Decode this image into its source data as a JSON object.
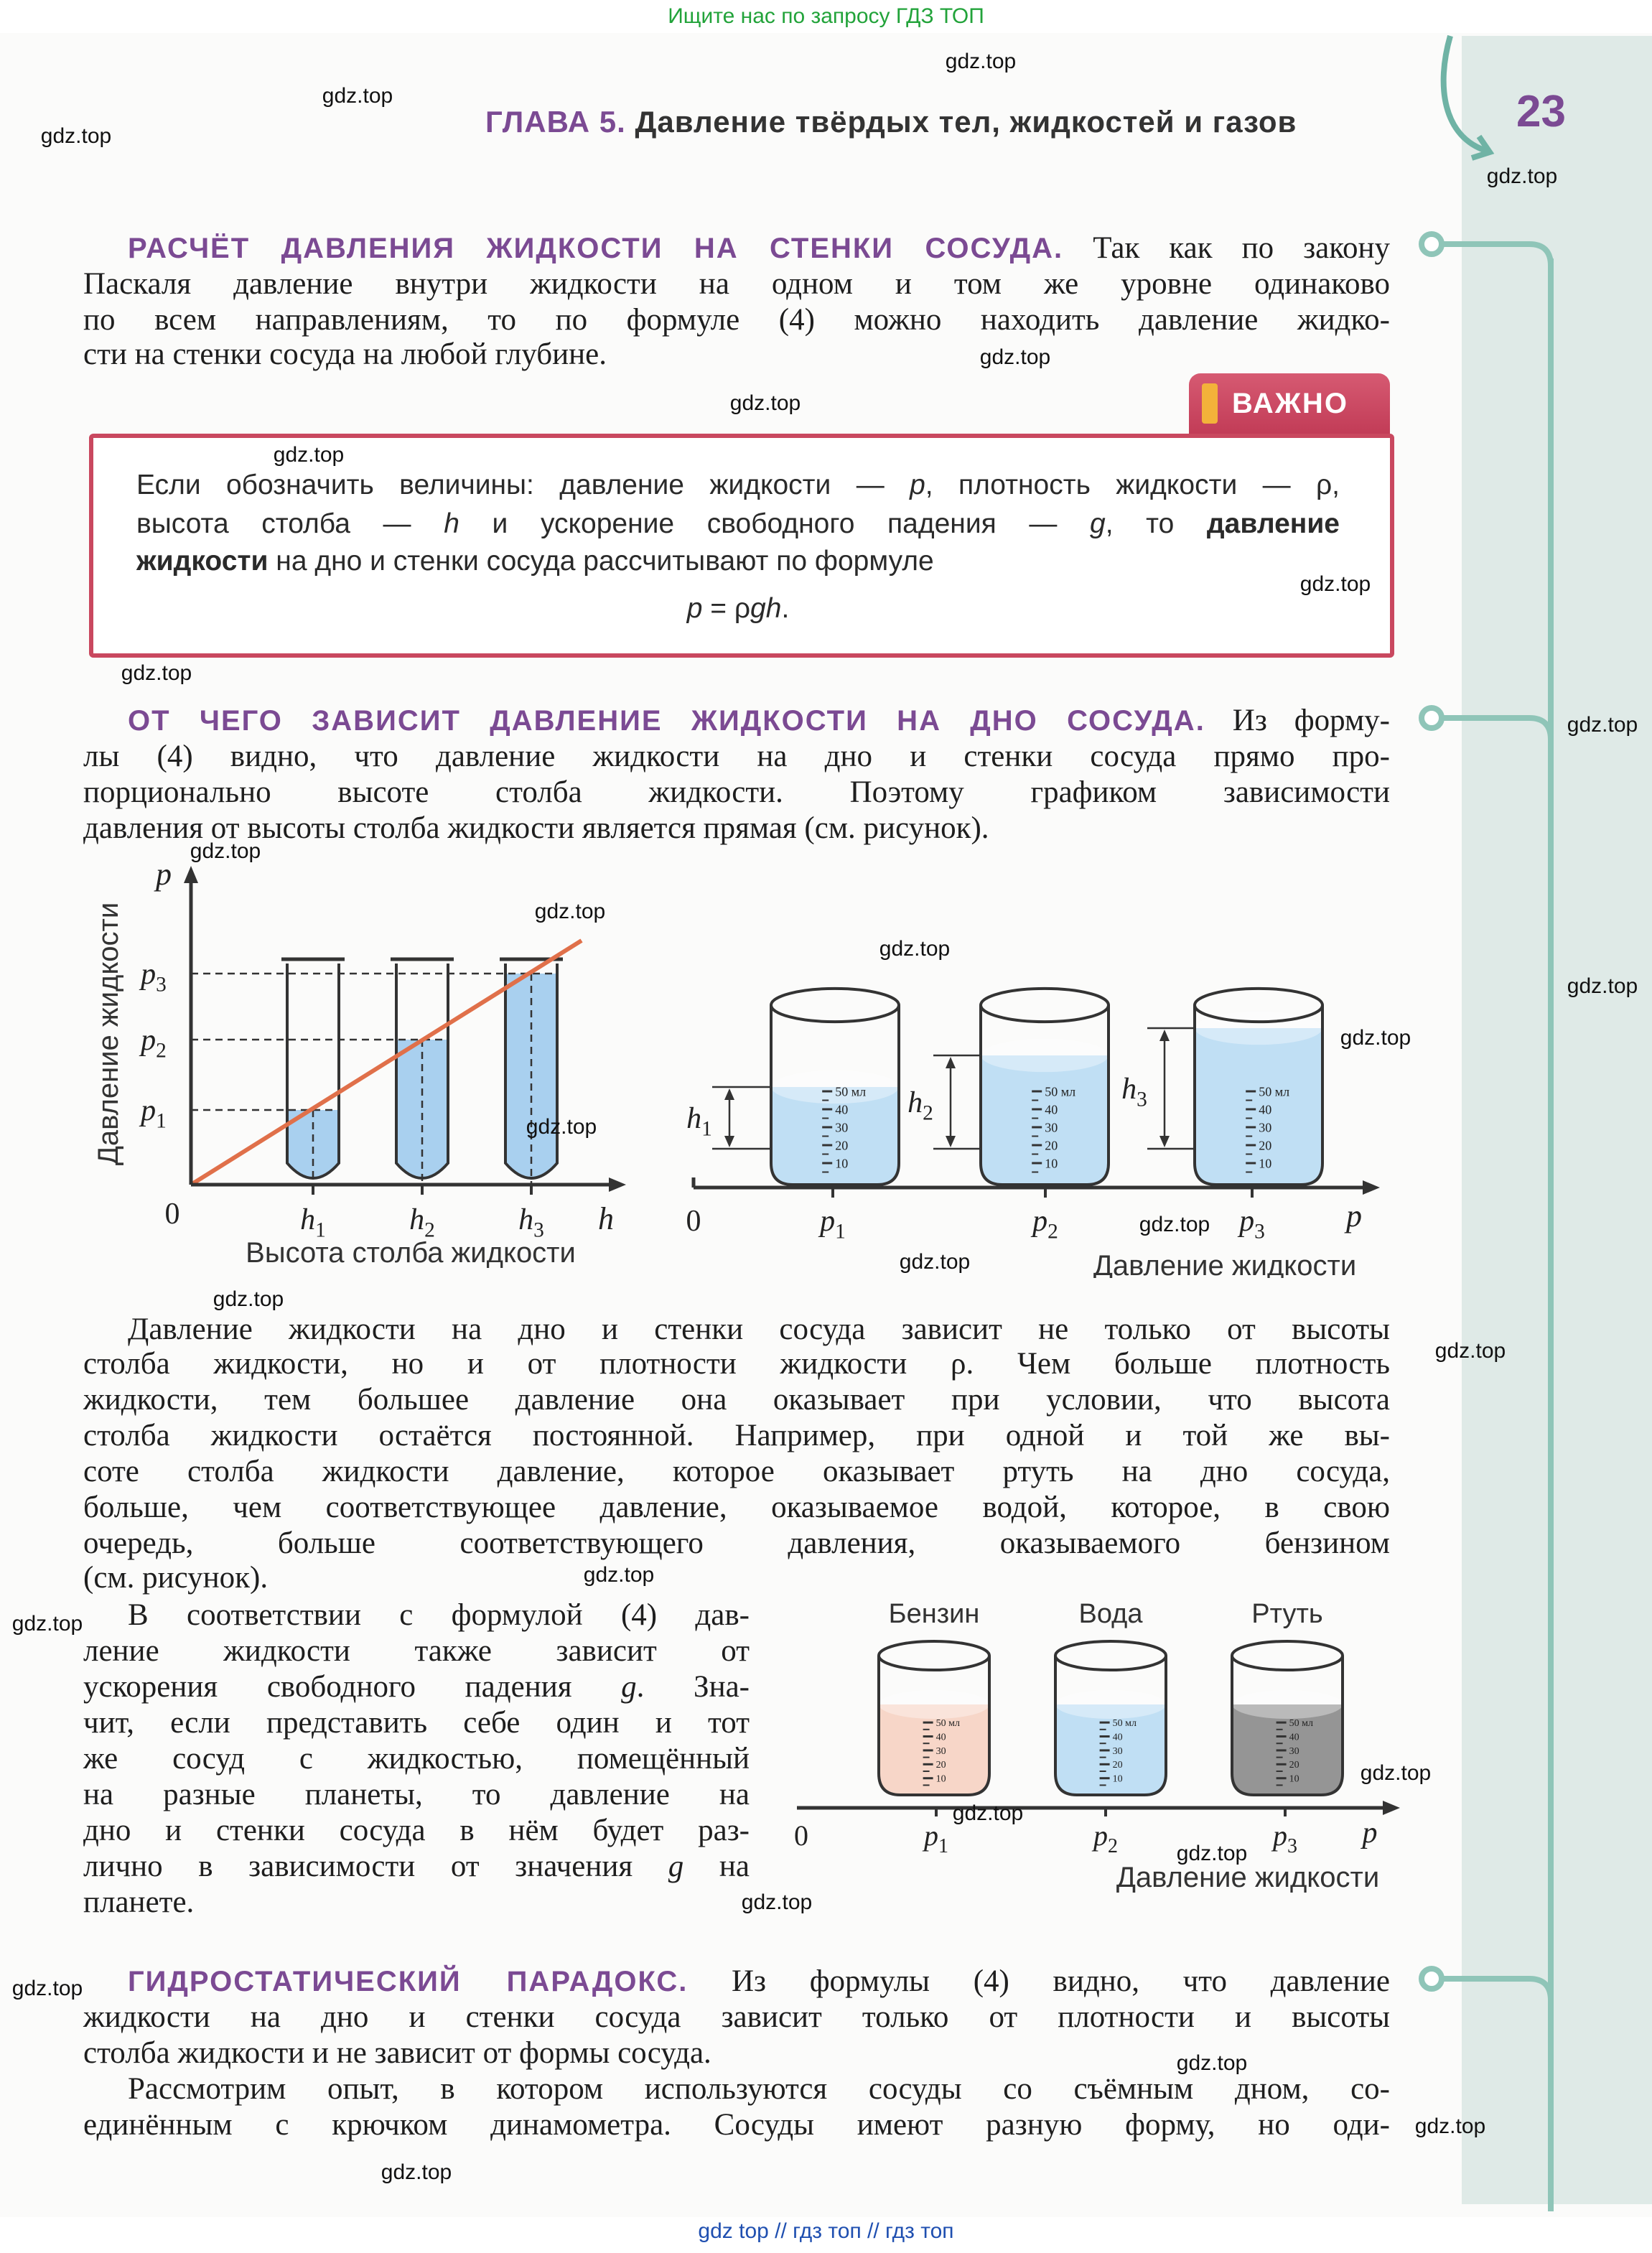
{
  "banner": "Ищите нас по запросу ГДЗ ТОП",
  "footer": "gdz top  //  гдз топ  //  гдз топ",
  "watermark": "gdz.top",
  "header": {
    "chapter_label": "ГЛАВА 5.",
    "chapter_title": "Давление твёрдых тел, жидкостей и газов",
    "page_number": "23"
  },
  "colors": {
    "heading": "#7b4a93",
    "box_border": "#c9485f",
    "water": "#a9d0ef",
    "graph_line": "#e0704a",
    "timeline": "#6fb3a5"
  },
  "important_tab": {
    "label": "ВАЖНО",
    "icon": "exclamation-icon"
  },
  "section1": [
    [
      {
        "s": "h",
        "t": "РАСЧЁТ ДАВЛЕНИЯ ЖИДКОСТИ НА СТЕНКИ СОСУДА."
      },
      {
        "t": " Так как по закону"
      }
    ],
    [
      {
        "t": "Паскаля давление внутри жидкости на одном и том же уровне одинаково"
      }
    ],
    [
      {
        "t": "по всем направлениям, то по формуле (4) можно находить давление жидко-"
      }
    ],
    [
      {
        "t": "сти на стенки сосуда на любой глубине."
      }
    ]
  ],
  "important_box": [
    [
      {
        "t": "Если обозначить величины: давление жидкости — "
      },
      {
        "s": "i",
        "t": "p"
      },
      {
        "t": ", плотность жидкости — ρ,"
      }
    ],
    [
      {
        "t": "высота столба — "
      },
      {
        "s": "i",
        "t": "h"
      },
      {
        "t": " и ускорение свободного падения — "
      },
      {
        "s": "i",
        "t": "g"
      },
      {
        "t": ", то "
      },
      {
        "s": "b",
        "t": "давление"
      }
    ],
    [
      {
        "s": "b",
        "t": "жидкости"
      },
      {
        "t": " на дно и стенки сосуда рассчитывают по формуле"
      }
    ],
    [
      {
        "s": "i",
        "t": "p"
      },
      {
        "t": " = ρ"
      },
      {
        "s": "i",
        "t": "gh"
      },
      {
        "t": "."
      }
    ]
  ],
  "section2": [
    [
      {
        "s": "h",
        "t": "ОТ ЧЕГО ЗАВИСИТ ДАВЛЕНИЕ ЖИДКОСТИ НА ДНО СОСУДА."
      },
      {
        "t": " Из форму-"
      }
    ],
    [
      {
        "t": "лы (4) видно, что давление жидкости на дно и стенки сосуда прямо про-"
      }
    ],
    [
      {
        "t": "порционально высоте столба жидкости. Поэтому графиком зависимости"
      }
    ],
    [
      {
        "t": "давления от высоты столба жидкости является прямая (см. рисунок)."
      }
    ]
  ],
  "figure1": {
    "y_axis_label": "Давление жидкости",
    "x_axis_label": "Высота столба жидкости",
    "y_symbol": "p",
    "x_symbol": "h",
    "origin": "0",
    "p_ticks": [
      "p",
      "p",
      "p"
    ],
    "subscripts": [
      "1",
      "2",
      "3"
    ],
    "h_ticks": [
      "h",
      "h",
      "h"
    ]
  },
  "figure2": {
    "axis_label": "Давление жидкости",
    "origin": "0",
    "axis_symbol": "p",
    "scale_labels": [
      "50 мл",
      "40",
      "30",
      "20",
      "10"
    ],
    "heights": [
      "h",
      "h",
      "h"
    ],
    "pressures": [
      "p",
      "p",
      "p"
    ],
    "subscripts": [
      "1",
      "2",
      "3"
    ]
  },
  "paragraph3": [
    [
      {
        "t": "Давление жидкости на дно и стенки сосуда зависит не только от высоты"
      }
    ],
    [
      {
        "t": "столба жидкости, но и от плотности жидкости ρ. Чем больше плотность"
      }
    ],
    [
      {
        "t": "жидкости, тем большее давление она оказывает при условии, что высота"
      }
    ],
    [
      {
        "t": "столба жидкости остаётся постоянной. Например, при одной и той же вы-"
      }
    ],
    [
      {
        "t": "соте столба жидкости давление, которое оказывает ртуть на дно сосуда,"
      }
    ],
    [
      {
        "t": "больше, чем соответствующее давление, оказываемое водой, которое, в свою"
      }
    ],
    [
      {
        "t": "очередь, больше соответствующего давления, оказываемого бензином"
      }
    ],
    [
      {
        "t": "(см. рисунок)."
      }
    ]
  ],
  "paragraph4": [
    [
      {
        "t": "В соответствии с формулой (4) дав-"
      }
    ],
    [
      {
        "t": "ление жидкости также зависит от"
      }
    ],
    [
      {
        "t": "ускорения свободного падения "
      },
      {
        "s": "i",
        "t": "g"
      },
      {
        "t": ". Зна-"
      }
    ],
    [
      {
        "t": "чит, если представить себе один и тот"
      }
    ],
    [
      {
        "t": "же сосуд с жидкостью, помещённый"
      }
    ],
    [
      {
        "t": "на разные планеты, то давление на"
      }
    ],
    [
      {
        "t": "дно и стенки сосуда в нём будет раз-"
      }
    ],
    [
      {
        "t": "лично в зависимости от значения "
      },
      {
        "s": "i",
        "t": "g"
      },
      {
        "t": " на"
      }
    ],
    [
      {
        "t": "планете."
      }
    ]
  ],
  "figure3": {
    "liquids": [
      "Бензин",
      "Вода",
      "Ртуть"
    ],
    "liquid_colors": [
      "#f6d2c2",
      "#b9dbf3",
      "#8a8a8a"
    ],
    "axis_label": "Давление жидкости",
    "origin": "0",
    "axis_symbol": "p",
    "pressures": [
      "p",
      "p",
      "p"
    ],
    "subscripts": [
      "1",
      "2",
      "3"
    ],
    "scale_labels": [
      "50 мл",
      "40",
      "30",
      "20",
      "10"
    ]
  },
  "section3": [
    [
      {
        "s": "h",
        "t": "ГИДРОСТАТИЧЕСКИЙ ПАРАДОКС."
      },
      {
        "t": " Из формулы (4) видно, что давление"
      }
    ],
    [
      {
        "t": "жидкости на дно и стенки сосуда зависит только от плотности и высоты"
      }
    ],
    [
      {
        "t": "столба жидкости и не зависит от формы сосуда."
      }
    ],
    [
      {
        "t": "Рассмотрим опыт, в котором используются сосуды со съёмным дном, со-"
      }
    ],
    [
      {
        "t": "единённым с крючком динамометра. Сосуды имеют разную форму, но оди-"
      }
    ]
  ]
}
